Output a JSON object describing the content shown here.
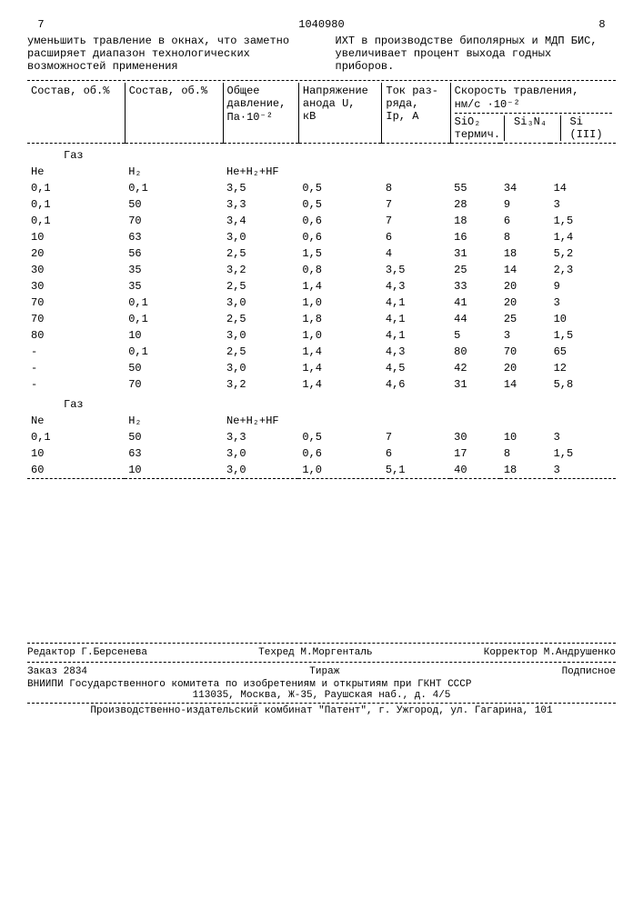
{
  "header": {
    "left_col": "7",
    "doc_number": "1040980",
    "right_col": "8"
  },
  "intro": {
    "left": "уменьшить травление в окнах, что заметно расширяет диапазон технологических возможностей применения",
    "right": "ИХТ в производстве биполярных и МДП БИС, увеличивает процент выхода годных приборов."
  },
  "table": {
    "headers": {
      "c1": "Состав, об.%",
      "c2": "Состав, об.%",
      "c3_l1": "Общее",
      "c3_l2": "давление,",
      "c3_l3": "Па·10⁻²",
      "c4_l1": "Напряжение",
      "c4_l2": "анода U,",
      "c4_l3": "кВ",
      "c5_l1": "Ток раз-",
      "c5_l2": "ряда,",
      "c5_l3": "Iр, А",
      "c6_l1": "Скорость травления,",
      "c6_l2": "нм/с ·10⁻²",
      "s1_l1": "SiO₂",
      "s1_l2": "термич.",
      "s2": "Si₃N₄",
      "s3_l1": "Si",
      "s3_l2": "(III)"
    },
    "group1": {
      "label": "Газ",
      "sub": {
        "c1": "He",
        "c2": "H₂",
        "c3": "He+H₂+HF"
      }
    },
    "rows1": [
      {
        "c1": "0,1",
        "c2": "0,1",
        "c3": "3,5",
        "c4": "0,5",
        "c5": "8",
        "s1": "55",
        "s2": "34",
        "s3": "14"
      },
      {
        "c1": "0,1",
        "c2": "50",
        "c3": "3,3",
        "c4": "0,5",
        "c5": "7",
        "s1": "28",
        "s2": "9",
        "s3": "3"
      },
      {
        "c1": "0,1",
        "c2": "70",
        "c3": "3,4",
        "c4": "0,6",
        "c5": "7",
        "s1": "18",
        "s2": "6",
        "s3": "1,5"
      },
      {
        "c1": "10",
        "c2": "63",
        "c3": "3,0",
        "c4": "0,6",
        "c5": "6",
        "s1": "16",
        "s2": "8",
        "s3": "1,4"
      },
      {
        "c1": "20",
        "c2": "56",
        "c3": "2,5",
        "c4": "1,5",
        "c5": "4",
        "s1": "31",
        "s2": "18",
        "s3": "5,2"
      },
      {
        "c1": "30",
        "c2": "35",
        "c3": "3,2",
        "c4": "0,8",
        "c5": "3,5",
        "s1": "25",
        "s2": "14",
        "s3": "2,3"
      },
      {
        "c1": "30",
        "c2": "35",
        "c3": "2,5",
        "c4": "1,4",
        "c5": "4,3",
        "s1": "33",
        "s2": "20",
        "s3": "9"
      },
      {
        "c1": "70",
        "c2": "0,1",
        "c3": "3,0",
        "c4": "1,0",
        "c5": "4,1",
        "s1": "41",
        "s2": "20",
        "s3": "3"
      },
      {
        "c1": "70",
        "c2": "0,1",
        "c3": "2,5",
        "c4": "1,8",
        "c5": "4,1",
        "s1": "44",
        "s2": "25",
        "s3": "10"
      },
      {
        "c1": "80",
        "c2": "10",
        "c3": "3,0",
        "c4": "1,0",
        "c5": "4,1",
        "s1": "5",
        "s2": "3",
        "s3": "1,5"
      },
      {
        "c1": "-",
        "c2": "0,1",
        "c3": "2,5",
        "c4": "1,4",
        "c5": "4,3",
        "s1": "80",
        "s2": "70",
        "s3": "65"
      },
      {
        "c1": "-",
        "c2": "50",
        "c3": "3,0",
        "c4": "1,4",
        "c5": "4,5",
        "s1": "42",
        "s2": "20",
        "s3": "12"
      },
      {
        "c1": "-",
        "c2": "70",
        "c3": "3,2",
        "c4": "1,4",
        "c5": "4,6",
        "s1": "31",
        "s2": "14",
        "s3": "5,8"
      }
    ],
    "group2": {
      "label": "Газ",
      "sub": {
        "c1": "Ne",
        "c2": "H₂",
        "c3": "Ne+H₂+HF"
      }
    },
    "rows2": [
      {
        "c1": "0,1",
        "c2": "50",
        "c3": "3,3",
        "c4": "0,5",
        "c5": "7",
        "s1": "30",
        "s2": "10",
        "s3": "3"
      },
      {
        "c1": "10",
        "c2": "63",
        "c3": "3,0",
        "c4": "0,6",
        "c5": "6",
        "s1": "17",
        "s2": "8",
        "s3": "1,5"
      },
      {
        "c1": "60",
        "c2": "10",
        "c3": "3,0",
        "c4": "1,0",
        "c5": "5,1",
        "s1": "40",
        "s2": "18",
        "s3": "3"
      }
    ]
  },
  "footer": {
    "editor_label": "Редактор",
    "editor": "Г.Берсенева",
    "techred_label": "Техред",
    "techred": "М.Моргенталь",
    "corrector_label": "Корректор",
    "corrector": "М.Андрушенко",
    "order_label": "Заказ",
    "order": "2834",
    "tirage": "Тираж",
    "subscription": "Подписное",
    "org1": "ВНИИПИ Государственного комитета по изобретениям и открытиям при ГКНТ СССР",
    "org2": "113035, Москва, Ж-35, Раушская наб., д. 4/5",
    "org3": "Производственно-издательский комбинат \"Патент\", г. Ужгород, ул. Гагарина, 101"
  }
}
